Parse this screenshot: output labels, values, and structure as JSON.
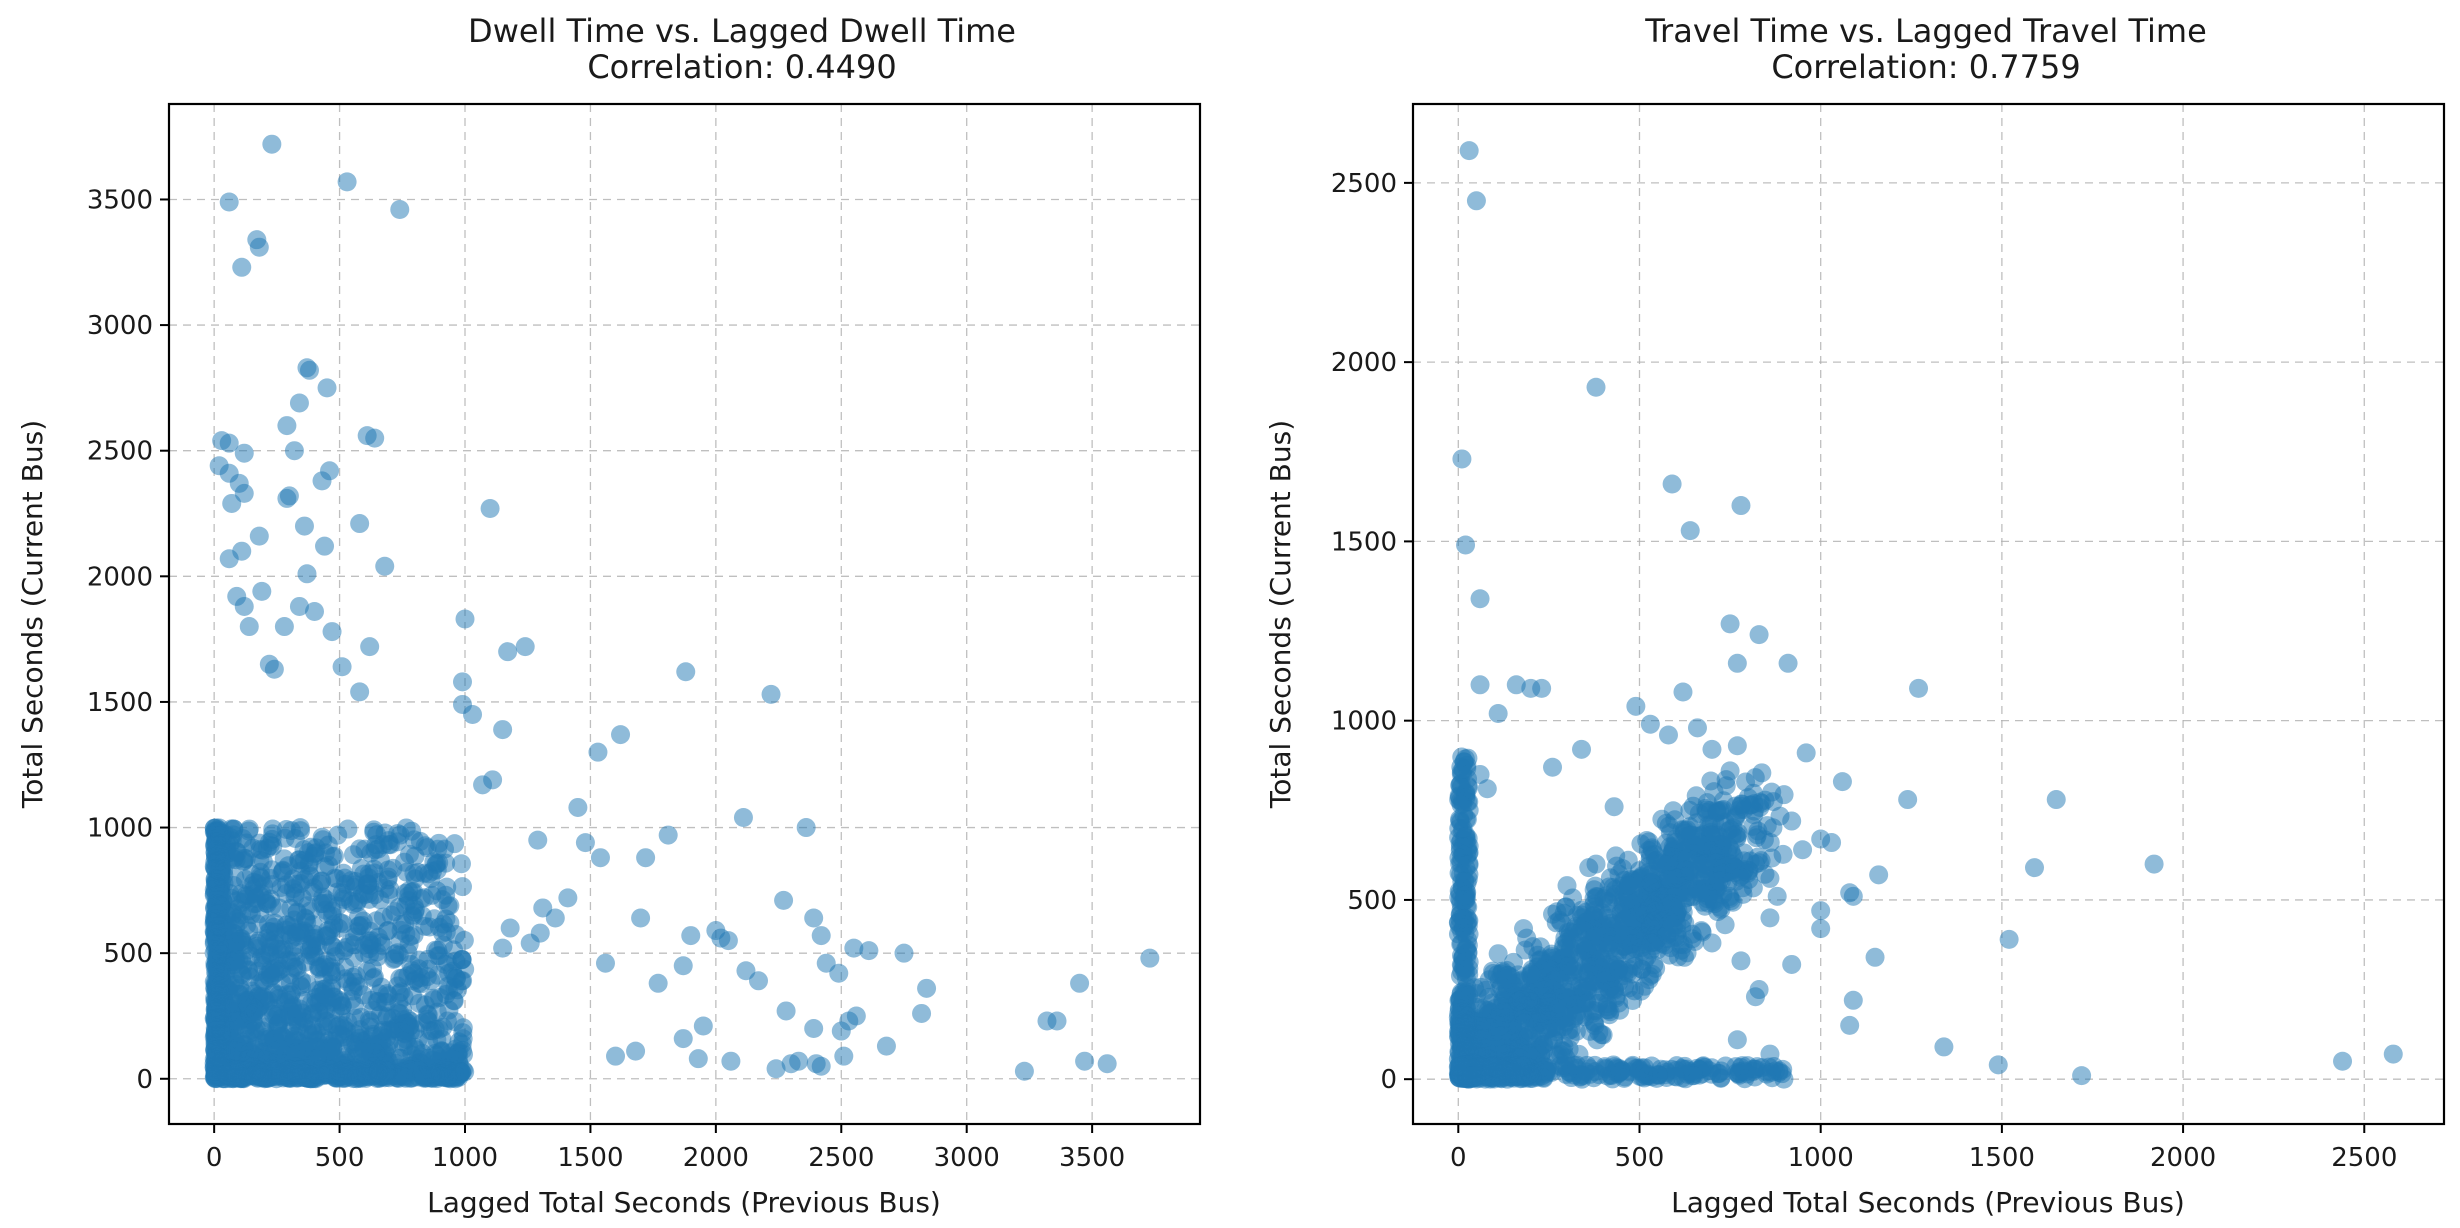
{
  "chart_data": [
    {
      "type": "scatter",
      "title": "Dwell Time vs. Lagged Dwell Time",
      "subtitle": "Correlation: 0.4490",
      "xlabel": "Lagged Total Seconds (Previous Bus)",
      "ylabel": "Total Seconds (Current Bus)",
      "xlim": [
        -180,
        3930
      ],
      "ylim": [
        -180,
        3880
      ],
      "xticks": [
        0,
        500,
        1000,
        1500,
        2000,
        2500,
        3000,
        3500
      ],
      "yticks": [
        0,
        500,
        1000,
        1500,
        2000,
        2500,
        3000,
        3500
      ],
      "grid": true,
      "color": "#1f77b4",
      "points": {
        "x": [
          230,
          530,
          60,
          740,
          170,
          180,
          110,
          370,
          380,
          450,
          30,
          60,
          610,
          640,
          340,
          290,
          460,
          20,
          60,
          430,
          100,
          120,
          300,
          290,
          320,
          70,
          120,
          580,
          1100,
          360,
          180,
          110,
          440,
          60,
          370,
          1000,
          190,
          90,
          120,
          680,
          400,
          340,
          140,
          280,
          470,
          620,
          220,
          240,
          510,
          580,
          1170,
          1240,
          1880,
          2220,
          990,
          990,
          1030,
          1620,
          1530,
          1810,
          1150,
          1450,
          1110,
          1070,
          1290,
          2110,
          2360,
          2270,
          2390,
          2420,
          2550,
          2610,
          2750,
          3450,
          3730,
          3320,
          3360,
          3470,
          3560,
          3230,
          2840,
          2680,
          2820,
          1300,
          1700,
          1560,
          1900,
          2000,
          2020,
          2050,
          2120,
          1870,
          1770,
          2280,
          2390,
          2440,
          2490,
          2170,
          1480,
          1540,
          1720,
          1410,
          1360,
          1310,
          1260,
          1180,
          1150,
          2500,
          2530,
          2560,
          2420,
          2300,
          2240,
          2330,
          2400,
          2060,
          1950,
          1680,
          1600,
          1870,
          1930,
          2510
        ],
        "y": [
          3720,
          3570,
          3490,
          3460,
          3340,
          3310,
          3230,
          2830,
          2820,
          2750,
          2540,
          2530,
          2560,
          2550,
          2690,
          2600,
          2420,
          2440,
          2410,
          2380,
          2370,
          2330,
          2320,
          2310,
          2500,
          2290,
          2490,
          2210,
          2270,
          2200,
          2160,
          2100,
          2120,
          2070,
          2010,
          1830,
          1940,
          1920,
          1880,
          2040,
          1860,
          1880,
          1800,
          1800,
          1780,
          1720,
          1650,
          1630,
          1640,
          1540,
          1700,
          1720,
          1620,
          1530,
          1580,
          1490,
          1450,
          1370,
          1300,
          970,
          1390,
          1080,
          1190,
          1170,
          950,
          1040,
          1000,
          710,
          640,
          570,
          520,
          510,
          500,
          380,
          480,
          230,
          230,
          70,
          60,
          30,
          360,
          130,
          260,
          580,
          640,
          460,
          570,
          590,
          560,
          550,
          430,
          450,
          380,
          270,
          200,
          460,
          420,
          390,
          940,
          880,
          880,
          720,
          640,
          680,
          540,
          600,
          520,
          190,
          230,
          250,
          50,
          60,
          40,
          70,
          60,
          70,
          210,
          110,
          90,
          160,
          80,
          90
        ]
      },
      "dense_region": {
        "x": [
          0,
          1000
        ],
        "y": [
          0,
          1000
        ]
      }
    },
    {
      "type": "scatter",
      "title": "Travel Time vs. Lagged Travel Time",
      "subtitle": "Correlation: 0.7759",
      "xlabel": "Lagged Total Seconds (Previous Bus)",
      "ylabel": "Total Seconds (Current Bus)",
      "xlim": [
        -125,
        2720
      ],
      "ylim": [
        -125,
        2720
      ],
      "xticks": [
        0,
        500,
        1000,
        1500,
        2000,
        2500
      ],
      "yticks": [
        0,
        500,
        1000,
        1500,
        2000,
        2500
      ],
      "grid": true,
      "color": "#1f77b4",
      "points": {
        "x": [
          30,
          50,
          380,
          10,
          20,
          590,
          780,
          640,
          60,
          750,
          830,
          910,
          770,
          1270,
          200,
          60,
          160,
          230,
          110,
          490,
          620,
          530,
          580,
          660,
          700,
          770,
          750,
          960,
          1060,
          1240,
          1000,
          1030,
          1080,
          1160,
          1090,
          1650,
          1590,
          1920,
          1520,
          1340,
          1490,
          1720,
          2440,
          2580,
          1090,
          1080,
          920,
          860,
          1150,
          1000,
          30,
          30,
          60,
          80,
          260,
          340,
          820,
          950,
          920,
          860,
          880,
          820,
          720,
          680,
          600,
          640,
          700,
          540,
          430,
          380,
          360,
          300,
          260,
          180,
          110,
          780,
          830,
          770,
          860,
          1000
        ],
        "y": [
          2590,
          2450,
          1930,
          1730,
          1490,
          1660,
          1600,
          1530,
          1340,
          1270,
          1240,
          1160,
          1160,
          1090,
          1090,
          1100,
          1100,
          1090,
          1020,
          1040,
          1080,
          990,
          960,
          980,
          920,
          930,
          860,
          910,
          830,
          780,
          670,
          660,
          520,
          570,
          510,
          780,
          590,
          600,
          390,
          90,
          40,
          10,
          50,
          70,
          220,
          150,
          320,
          450,
          340,
          420,
          750,
          650,
          850,
          810,
          870,
          920,
          230,
          640,
          720,
          560,
          510,
          600,
          640,
          600,
          660,
          580,
          380,
          440,
          760,
          600,
          590,
          540,
          460,
          420,
          350,
          330,
          250,
          110,
          70,
          470
        ]
      },
      "dense_region": {
        "x": [
          0,
          1000
        ],
        "y": [
          0,
          1000
        ]
      }
    }
  ]
}
